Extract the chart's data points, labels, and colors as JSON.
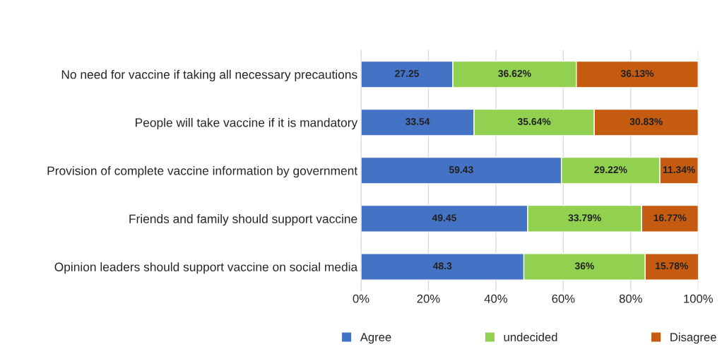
{
  "chart_data": {
    "type": "bar",
    "orientation": "horizontal",
    "stacked": true,
    "categories": [
      "No need for vaccine if taking all necessary precautions",
      "People will take vaccine if it is mandatory",
      "Provision of complete vaccine information by government",
      "Friends and family should support vaccine",
      "Opinion leaders should support vaccine on social media"
    ],
    "series": [
      {
        "name": "Agree",
        "color": "#4472c4",
        "values": [
          27.25,
          33.54,
          59.43,
          49.45,
          48.3
        ],
        "value_labels": [
          "27.25",
          "33.54",
          "59.43",
          "49.45",
          "48.3"
        ]
      },
      {
        "name": "undecided",
        "color": "#92d050",
        "values": [
          36.62,
          35.64,
          29.22,
          33.79,
          36
        ],
        "value_labels": [
          "36.62%",
          "35.64%",
          "29.22%",
          "33.79%",
          "36%"
        ]
      },
      {
        "name": "Disagree",
        "color": "#c55a11",
        "values": [
          36.13,
          30.83,
          11.34,
          16.77,
          15.78
        ],
        "value_labels": [
          "36.13%",
          "30.83%",
          "11.34%",
          "16.77%",
          "15.78%"
        ]
      }
    ],
    "xlim": [
      0,
      100
    ],
    "xticks": [
      {
        "value": 0,
        "label": "0%"
      },
      {
        "value": 20,
        "label": "20%"
      },
      {
        "value": 40,
        "label": "40%"
      },
      {
        "value": 60,
        "label": "60%"
      },
      {
        "value": 80,
        "label": "80%"
      },
      {
        "value": 100,
        "label": "100%"
      }
    ],
    "grid": "x",
    "legend": "bottom"
  }
}
